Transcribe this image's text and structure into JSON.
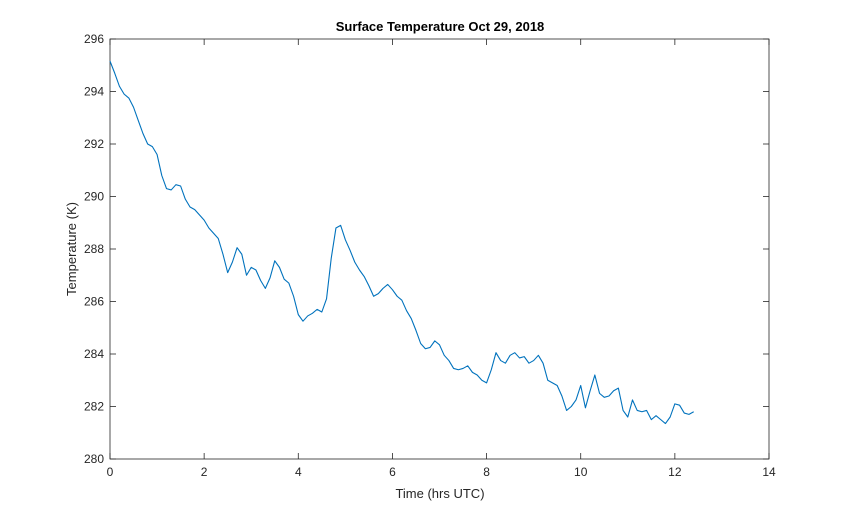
{
  "chart_data": {
    "type": "line",
    "title": "Surface Temperature Oct 29, 2018",
    "xlabel": "Time (hrs UTC)",
    "ylabel": "Temperature (K)",
    "xlim": [
      0,
      14
    ],
    "ylim": [
      280,
      296
    ],
    "xticks": [
      0,
      2,
      4,
      6,
      8,
      10,
      12,
      14
    ],
    "yticks": [
      280,
      282,
      284,
      286,
      288,
      290,
      292,
      294,
      296
    ],
    "x": [
      0,
      0.1,
      0.2,
      0.3,
      0.4,
      0.5,
      0.6,
      0.7,
      0.8,
      0.9,
      1.0,
      1.1,
      1.2,
      1.3,
      1.4,
      1.5,
      1.6,
      1.7,
      1.8,
      1.9,
      2.0,
      2.1,
      2.2,
      2.3,
      2.4,
      2.5,
      2.6,
      2.7,
      2.8,
      2.9,
      3.0,
      3.1,
      3.2,
      3.3,
      3.4,
      3.5,
      3.6,
      3.7,
      3.8,
      3.9,
      4.0,
      4.1,
      4.2,
      4.3,
      4.4,
      4.5,
      4.6,
      4.7,
      4.8,
      4.9,
      5.0,
      5.1,
      5.2,
      5.3,
      5.4,
      5.5,
      5.6,
      5.7,
      5.8,
      5.9,
      6.0,
      6.1,
      6.2,
      6.3,
      6.4,
      6.5,
      6.6,
      6.7,
      6.8,
      6.9,
      7.0,
      7.1,
      7.2,
      7.3,
      7.4,
      7.5,
      7.6,
      7.7,
      7.8,
      7.9,
      8.0,
      8.1,
      8.2,
      8.3,
      8.4,
      8.5,
      8.6,
      8.7,
      8.8,
      8.9,
      9.0,
      9.1,
      9.2,
      9.3,
      9.4,
      9.5,
      9.6,
      9.7,
      9.8,
      9.9,
      10.0,
      10.1,
      10.2,
      10.3,
      10.4,
      10.5,
      10.6,
      10.7,
      10.8,
      10.9,
      11.0,
      11.1,
      11.2,
      11.3,
      11.4,
      11.5,
      11.6,
      11.7,
      11.8,
      11.9,
      12.0,
      12.1,
      12.2,
      12.3,
      12.4
    ],
    "series": [
      {
        "name": "Temperature",
        "color": "#0072bd",
        "values": [
          295.16,
          294.7,
          294.2,
          293.9,
          293.75,
          293.4,
          292.9,
          292.4,
          292.0,
          291.9,
          291.6,
          290.8,
          290.3,
          290.25,
          290.45,
          290.4,
          289.9,
          289.6,
          289.5,
          289.3,
          289.1,
          288.8,
          288.6,
          288.4,
          287.8,
          287.1,
          287.5,
          288.05,
          287.8,
          287.0,
          287.3,
          287.2,
          286.8,
          286.5,
          286.9,
          287.55,
          287.3,
          286.85,
          286.7,
          286.2,
          285.5,
          285.25,
          285.45,
          285.55,
          285.7,
          285.6,
          286.1,
          287.65,
          288.8,
          288.9,
          288.35,
          287.95,
          287.5,
          287.2,
          286.95,
          286.6,
          286.2,
          286.3,
          286.5,
          286.65,
          286.45,
          286.2,
          286.05,
          285.65,
          285.35,
          284.9,
          284.4,
          284.2,
          284.25,
          284.5,
          284.35,
          283.95,
          283.75,
          283.45,
          283.4,
          283.45,
          283.55,
          283.3,
          283.2,
          283.0,
          282.9,
          283.4,
          284.05,
          283.75,
          283.65,
          283.95,
          284.05,
          283.85,
          283.9,
          283.65,
          283.75,
          283.95,
          283.65,
          283.0,
          282.9,
          282.8,
          282.4,
          281.85,
          282.0,
          282.25,
          282.8,
          281.95,
          282.6,
          283.2,
          282.5,
          282.35,
          282.4,
          282.6,
          282.7,
          281.85,
          281.6,
          282.25,
          281.85,
          281.8,
          281.85,
          281.5,
          281.65,
          281.5,
          281.35,
          281.6,
          282.1,
          282.05,
          281.75,
          281.7,
          281.8
        ]
      }
    ]
  }
}
